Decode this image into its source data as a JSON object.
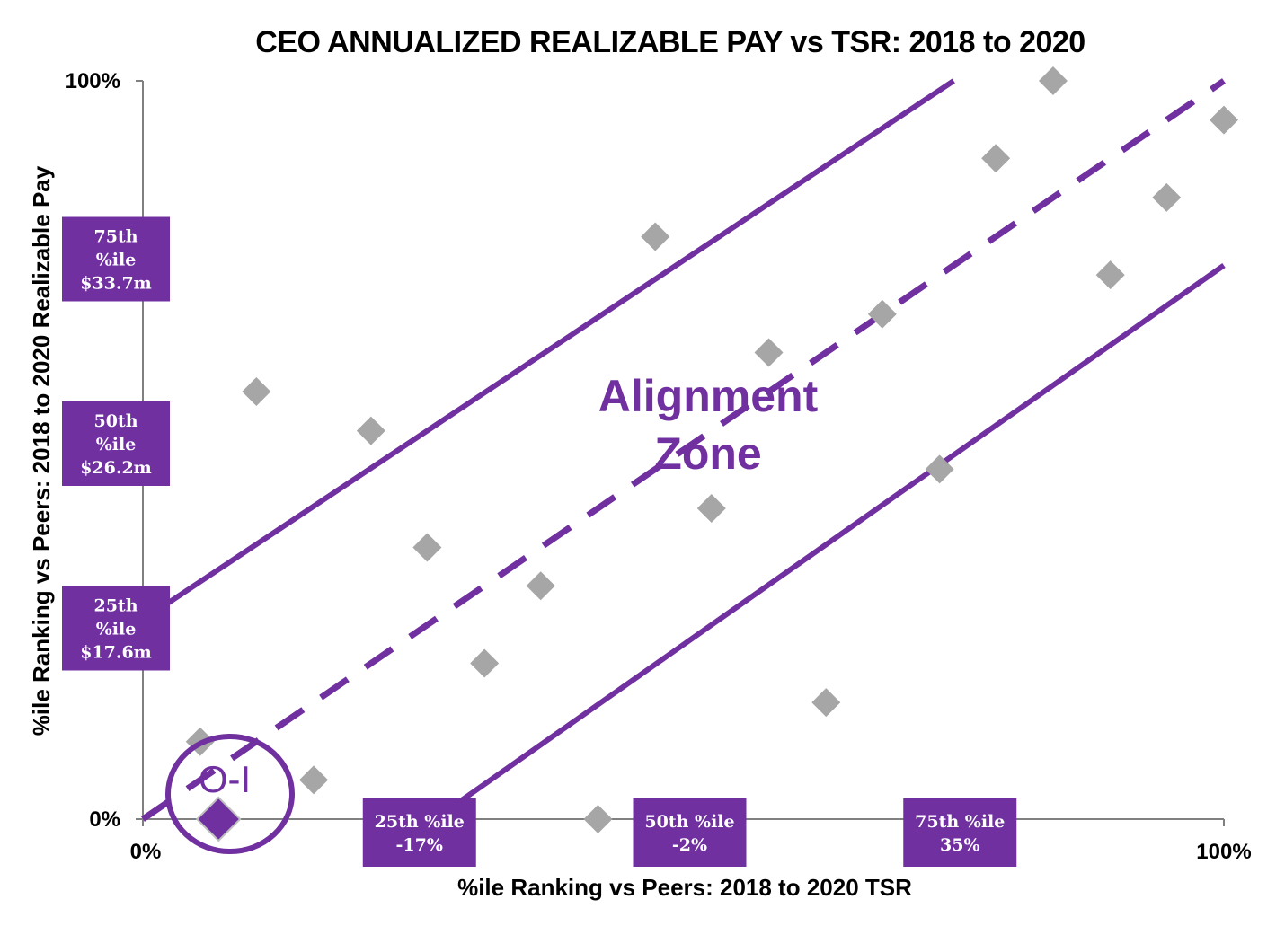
{
  "chart_data": {
    "type": "scatter",
    "title": "CEO ANNUALIZED REALIZABLE PAY vs TSR: 2018 to 2020",
    "xlabel": "%ile Ranking vs Peers: 2018 to 2020 TSR",
    "ylabel": "%ile Ranking vs Peers: 2018 to 2020 Realizable Pay",
    "xlim": [
      0,
      1
    ],
    "ylim": [
      0,
      1
    ],
    "x_ticks": [
      "0%",
      "100%"
    ],
    "y_ticks": [
      "0%",
      "100%"
    ],
    "grid": false,
    "colors": {
      "accent": "#7030a0",
      "peer_points": "#a6a6a6",
      "axis": "#808080"
    },
    "peers": {
      "x": [
        0.053,
        0.105,
        0.158,
        0.211,
        0.263,
        0.316,
        0.368,
        0.421,
        0.474,
        0.526,
        0.579,
        0.632,
        0.684,
        0.737,
        0.789,
        0.842,
        0.895,
        0.947,
        1.0
      ],
      "y": [
        0.105,
        0.579,
        0.053,
        0.526,
        0.368,
        0.211,
        0.316,
        0.0,
        0.789,
        0.421,
        0.632,
        0.158,
        0.684,
        0.474,
        0.895,
        1.0,
        0.737,
        0.842,
        0.947
      ]
    },
    "company": {
      "label": "O-I",
      "x": 0.07,
      "y": 0.0
    },
    "lines": [
      {
        "name": "upper-bound",
        "style": "solid",
        "x": [
          0,
          0.75
        ],
        "y": [
          0.27,
          1.0
        ]
      },
      {
        "name": "median-line",
        "style": "dashed",
        "x": [
          0,
          1.0
        ],
        "y": [
          0.0,
          1.0
        ]
      },
      {
        "name": "lower-bound",
        "style": "solid",
        "x": [
          0.27,
          1.0
        ],
        "y": [
          0.0,
          0.75
        ]
      }
    ],
    "zone_label": [
      "Alignment",
      "Zone"
    ],
    "pay_percentile_boxes": [
      {
        "lines": [
          "75th",
          "%ile",
          "$33.7m"
        ],
        "y": 0.75
      },
      {
        "lines": [
          "50th",
          "%ile",
          "$26.2m"
        ],
        "y": 0.5
      },
      {
        "lines": [
          "25th",
          "%ile",
          "$17.6m"
        ],
        "y": 0.25
      }
    ],
    "tsr_percentile_boxes": [
      {
        "lines": [
          "25th %ile",
          "-17%"
        ],
        "x": 0.25
      },
      {
        "lines": [
          "50th %ile",
          "-2%"
        ],
        "x": 0.5
      },
      {
        "lines": [
          "75th %ile",
          "35%"
        ],
        "x": 0.75
      }
    ]
  }
}
